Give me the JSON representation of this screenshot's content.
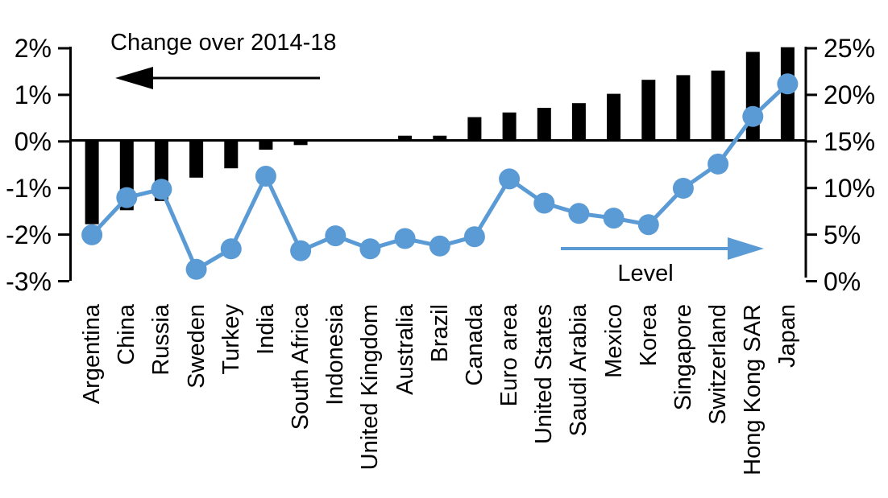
{
  "chart_data": {
    "type": "bar+line-dual-axis",
    "grid": "off",
    "legend_position": "none",
    "categories": [
      "Argentina",
      "China",
      "Russia",
      "Sweden",
      "Turkey",
      "India",
      "South Africa",
      "Indonesia",
      "United Kingdom",
      "Australia",
      "Brazil",
      "Canada",
      "Euro area",
      "United States",
      "Saudi Arabia",
      "Mexico",
      "Korea",
      "Singapore",
      "Switzerland",
      "Hong Kong SAR",
      "Japan"
    ],
    "series": [
      {
        "name": "Change over 2014-18",
        "type": "bar",
        "axis": "left",
        "color": "#000000",
        "values": [
          -1.8,
          -1.5,
          -1.3,
          -0.8,
          -0.6,
          -0.2,
          -0.1,
          0.0,
          0.0,
          0.1,
          0.1,
          0.5,
          0.6,
          0.7,
          0.8,
          1.0,
          1.3,
          1.4,
          1.5,
          1.9,
          2.0
        ]
      },
      {
        "name": "Level",
        "type": "line",
        "axis": "right",
        "color": "#5B9BD5",
        "values": [
          4.8,
          8.8,
          9.7,
          1.1,
          3.3,
          11.1,
          3.1,
          4.7,
          3.3,
          4.4,
          3.6,
          4.6,
          10.8,
          8.2,
          7.1,
          6.6,
          5.9,
          9.8,
          12.4,
          17.5,
          21.0
        ]
      }
    ],
    "left_axis": {
      "min": -3,
      "max": 2,
      "tick_step": 1,
      "tick_labels": [
        "2%",
        "1%",
        "0%",
        "-1%",
        "-2%",
        "-3%"
      ],
      "format": "percent"
    },
    "right_axis": {
      "min": 0,
      "max": 25,
      "tick_step": 5,
      "tick_labels": [
        "25%",
        "20%",
        "15%",
        "10%",
        "5%",
        "0%"
      ],
      "format": "percent"
    },
    "annotations": {
      "bar_series_label": {
        "text": "Change over 2014-18",
        "arrow_direction": "left",
        "color": "#000000"
      },
      "line_series_label": {
        "text": "Level",
        "arrow_direction": "right",
        "color": "#5B9BD5"
      }
    }
  }
}
